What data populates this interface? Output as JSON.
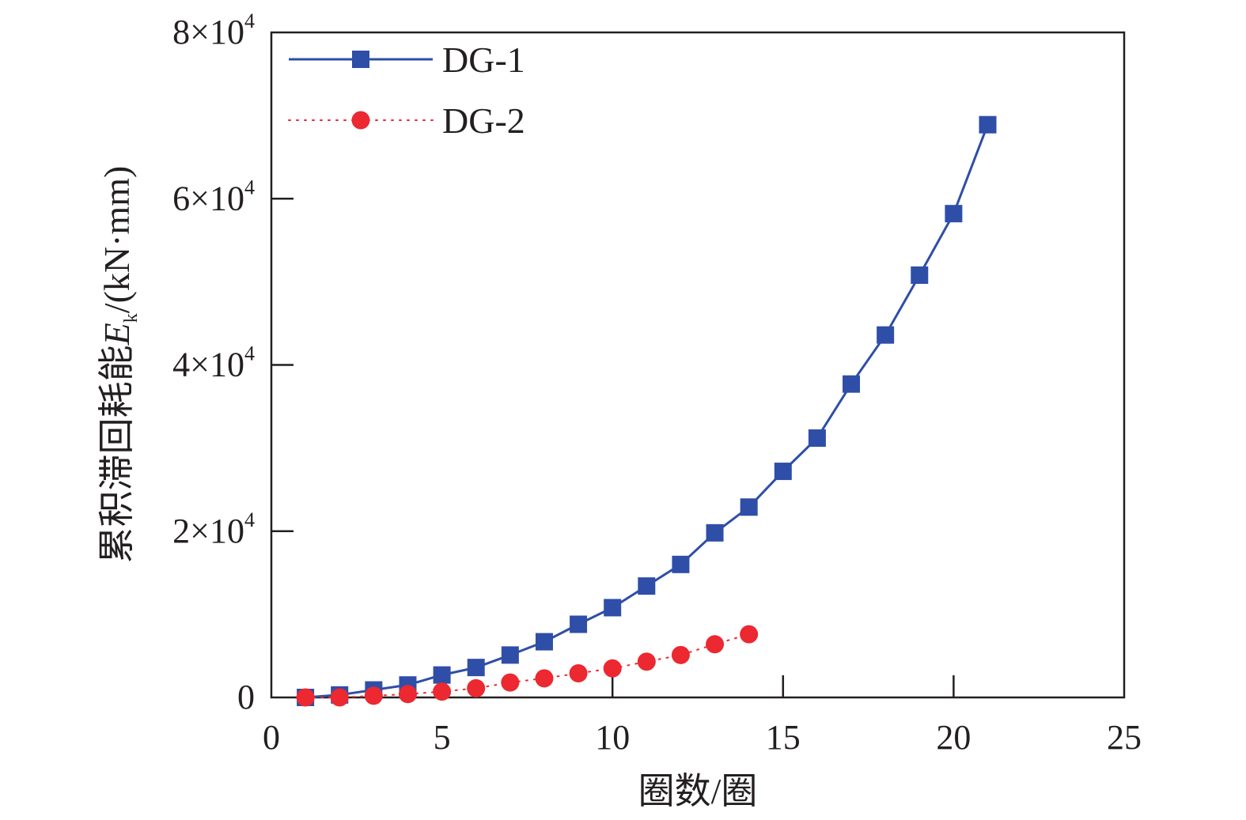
{
  "chart_data": {
    "type": "line",
    "xlabel": "圈数/圈",
    "ylabel": {
      "prefix": "累积滞回耗能",
      "symbol": "E",
      "subscript": "k",
      "unit": "/(kN·mm)"
    },
    "xlim": [
      0,
      25
    ],
    "ylim": [
      0,
      80000
    ],
    "x_ticks": [
      0,
      5,
      10,
      15,
      20,
      25
    ],
    "y_ticks": [
      0,
      20000,
      40000,
      60000,
      80000
    ],
    "y_tick_labels": [
      {
        "mantissa": "0",
        "times": "",
        "base": "",
        "exp": ""
      },
      {
        "mantissa": "2",
        "times": "×",
        "base": "10",
        "exp": "4"
      },
      {
        "mantissa": "4",
        "times": "×",
        "base": "10",
        "exp": "4"
      },
      {
        "mantissa": "6",
        "times": "×",
        "base": "10",
        "exp": "4"
      },
      {
        "mantissa": "8",
        "times": "×",
        "base": "10",
        "exp": "4"
      }
    ],
    "legend_position": "top-left",
    "series": [
      {
        "name": "DG-1",
        "color": "#2e4ea8",
        "line": "solid",
        "marker": "square",
        "x": [
          1,
          2,
          3,
          4,
          5,
          6,
          7,
          8,
          9,
          10,
          11,
          12,
          13,
          14,
          15,
          16,
          17,
          18,
          19,
          20,
          21
        ],
        "y": [
          0,
          300,
          900,
          1500,
          2700,
          3600,
          5100,
          6700,
          8800,
          10800,
          13400,
          16000,
          19800,
          22900,
          27200,
          31200,
          37700,
          43600,
          50800,
          58200,
          68900
        ]
      },
      {
        "name": "DG-2",
        "color": "#ec2830",
        "line": "dotted",
        "marker": "circle",
        "x": [
          1,
          2,
          3,
          4,
          5,
          6,
          7,
          8,
          9,
          10,
          11,
          12,
          13,
          14
        ],
        "y": [
          0,
          0,
          200,
          400,
          700,
          1100,
          1800,
          2300,
          2900,
          3500,
          4300,
          5100,
          6400,
          7600
        ]
      }
    ]
  }
}
